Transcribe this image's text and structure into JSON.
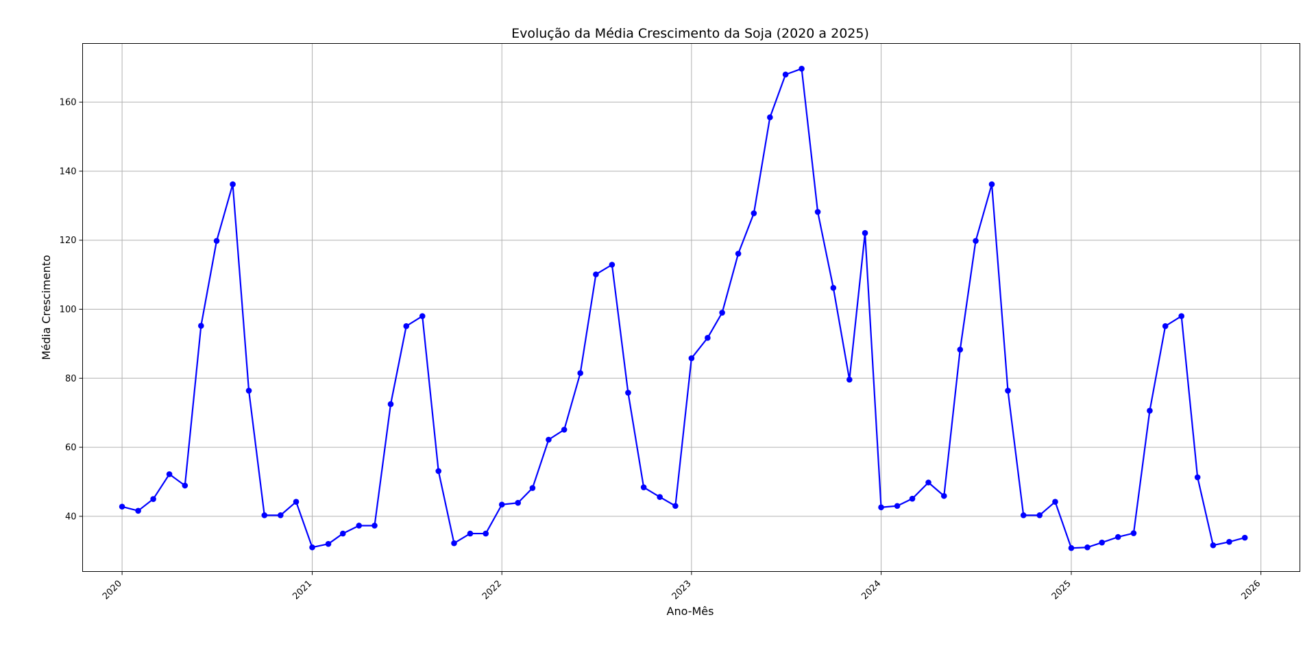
{
  "chart_data": {
    "type": "line",
    "title": "Evolução da Média Crescimento da Soja (2020 a 2025)",
    "xlabel": "Ano-Mês",
    "ylabel": "Média Crescimento",
    "x_type": "date",
    "x_tick_labels": [
      "2020",
      "2021",
      "2022",
      "2023",
      "2024",
      "2025",
      "2026"
    ],
    "y_ticks": [
      40,
      60,
      80,
      100,
      120,
      140,
      160
    ],
    "xlim": [
      "2019-10-17",
      "2026-03-17"
    ],
    "ylim": [
      24,
      177
    ],
    "grid": true,
    "legend": "none",
    "colors": {
      "line": "#0000ff",
      "marker": "#0000ff",
      "grid": "#b0b0b0",
      "axes": "#000000"
    },
    "series": [
      {
        "x": [
          "2020-01",
          "2020-02",
          "2020-03",
          "2020-04",
          "2020-05",
          "2020-06",
          "2020-07",
          "2020-08",
          "2020-09",
          "2020-10",
          "2020-11",
          "2020-12",
          "2021-01",
          "2021-02",
          "2021-03",
          "2021-04",
          "2021-05",
          "2021-06",
          "2021-07",
          "2021-08",
          "2021-09",
          "2021-10",
          "2021-11",
          "2021-12",
          "2022-01",
          "2022-02",
          "2022-03",
          "2022-04",
          "2022-05",
          "2022-06",
          "2022-07",
          "2022-08",
          "2022-09",
          "2022-10",
          "2022-11",
          "2022-12",
          "2023-01",
          "2023-02",
          "2023-03",
          "2023-04",
          "2023-05",
          "2023-06",
          "2023-07",
          "2023-08",
          "2023-09",
          "2023-10",
          "2023-11",
          "2023-12",
          "2024-01",
          "2024-02",
          "2024-03",
          "2024-04",
          "2024-05",
          "2024-06",
          "2024-07",
          "2024-08",
          "2024-09",
          "2024-10",
          "2024-11",
          "2024-12",
          "2025-01",
          "2025-02",
          "2025-03",
          "2025-04",
          "2025-05",
          "2025-06",
          "2025-07",
          "2025-08",
          "2025-09",
          "2025-10",
          "2025-11",
          "2025-12"
        ],
        "values": [
          42.8,
          41.6,
          45.0,
          52.2,
          48.9,
          95.2,
          119.8,
          136.2,
          76.4,
          40.3,
          40.3,
          44.2,
          31.0,
          32.0,
          35.0,
          37.3,
          37.3,
          72.5,
          95.1,
          98.0,
          53.1,
          32.2,
          35.0,
          35.0,
          43.4,
          43.9,
          48.2,
          62.2,
          65.1,
          81.5,
          110.1,
          112.9,
          75.8,
          48.4,
          45.6,
          43.0,
          85.8,
          91.7,
          99.0,
          116.1,
          127.8,
          155.6,
          168.0,
          169.7,
          128.2,
          106.2,
          79.6,
          122.1,
          42.6,
          43.0,
          45.1,
          49.8,
          45.9,
          88.3,
          119.8,
          136.2,
          76.4,
          40.3,
          40.3,
          44.2,
          30.8,
          31.0,
          32.4,
          34.0,
          35.1,
          70.6,
          95.1,
          98.0,
          51.3,
          31.6,
          32.6,
          33.8
        ]
      }
    ]
  }
}
